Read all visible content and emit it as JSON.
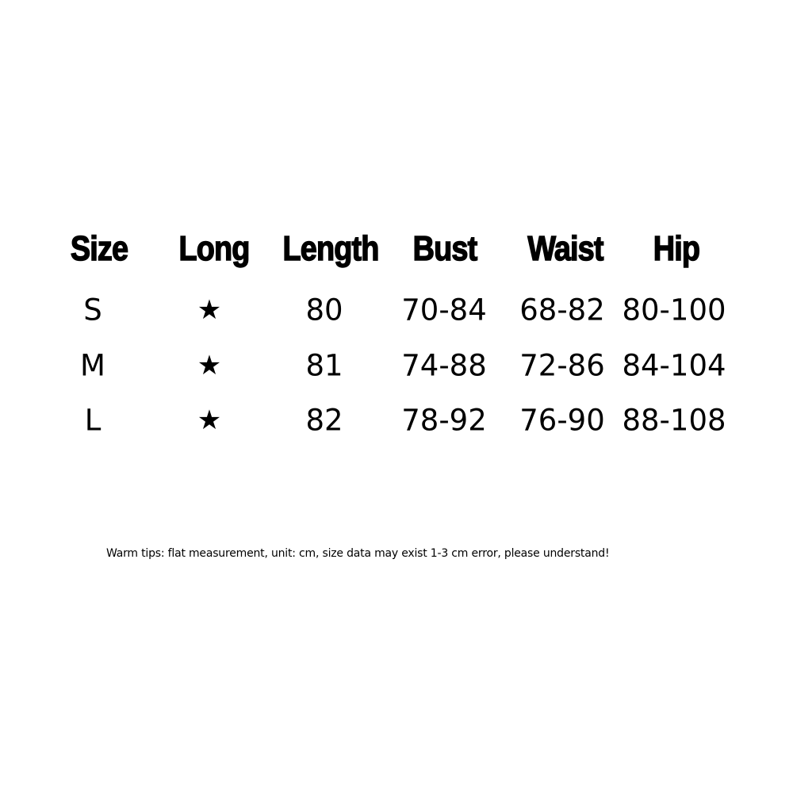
{
  "table": {
    "headers": [
      "Size",
      "Long",
      "Length",
      "Bust",
      "Waist",
      "Hip"
    ],
    "rows": [
      [
        "S",
        "★",
        "80",
        "70-84",
        "68-82",
        "80-100"
      ],
      [
        "M",
        "★",
        "81",
        "74-88",
        "72-86",
        "84-104"
      ],
      [
        "L",
        "★",
        "82",
        "78-92",
        "76-90",
        "88-108"
      ]
    ]
  },
  "footer": {
    "tips": "Warm tips: flat measurement, unit: cm, size data may exist 1-3 cm error, please understand!"
  }
}
